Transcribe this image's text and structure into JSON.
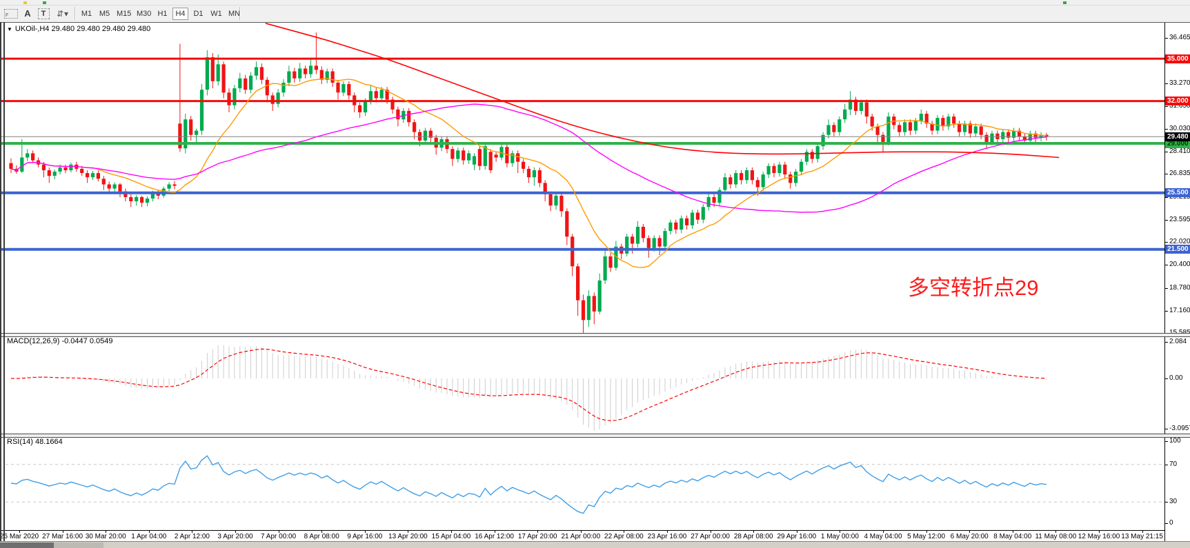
{
  "toolbar": {
    "icons": [
      {
        "name": "pointer-grid-icon",
        "glyph": "F"
      },
      {
        "name": "text-annotation-icon",
        "glyph": "A"
      },
      {
        "name": "text-label-icon",
        "glyph": "T"
      },
      {
        "name": "indicator-arrows-icon",
        "glyph": "⇵"
      },
      {
        "name": "dropdown-caret-icon",
        "glyph": "▾"
      }
    ],
    "timeframes": [
      {
        "label": "M1",
        "active": false
      },
      {
        "label": "M5",
        "active": false
      },
      {
        "label": "M15",
        "active": false
      },
      {
        "label": "M30",
        "active": false
      },
      {
        "label": "H1",
        "active": false
      },
      {
        "label": "H4",
        "active": true
      },
      {
        "label": "D1",
        "active": false
      },
      {
        "label": "W1",
        "active": false
      },
      {
        "label": "MN",
        "active": false
      }
    ]
  },
  "symbol_bar": {
    "caret": "▼",
    "text": "UKOil-,H4  29.480 29.480 29.480 29.480"
  },
  "annotation": {
    "text": "多空转折点29"
  },
  "panels": {
    "macd": {
      "label": "MACD(12,26,9) -0.0447 0.0549"
    },
    "rsi": {
      "label": "RSI(14) 48.1664"
    }
  },
  "colors": {
    "bull": "#00ab4e",
    "bear": "#f01414",
    "ma_fast": "#ff9a00",
    "ma_mid": "#ff00ff",
    "ma_slow": "#ff0000",
    "level_red": "#f40b0b",
    "level_green": "#2fb14c",
    "level_blue": "#3c63d2",
    "current_line": "#808080",
    "current_bg": "#000000",
    "current_text": "#ffffff",
    "hist": "#cdcdcd",
    "signal": "#ff0000",
    "rsi_line": "#3e9ee8",
    "rsi_dash": "#c8c8c8",
    "annotation": "#fb1d1d"
  },
  "chart_data": {
    "type": "candlestick",
    "symbol": "UKOil-",
    "timeframe": "H4",
    "price_range": {
      "max": 37.54,
      "min": 15.585
    },
    "price_axis_ticks": [
      "36.465",
      "34.845",
      "33.270",
      "31.650",
      "30.030",
      "28.410",
      "26.835",
      "25.215",
      "23.595",
      "22.020",
      "20.400",
      "18.780",
      "17.160",
      "15.585"
    ],
    "price_levels": [
      {
        "label": "35.000",
        "price": 35.0,
        "color": "level_red",
        "text": "#ffffff",
        "width": 3
      },
      {
        "label": "32.000",
        "price": 32.0,
        "color": "level_red",
        "text": "#ffffff",
        "width": 3
      },
      {
        "label": "29.000",
        "price": 29.0,
        "color": "level_green",
        "text": "#003300",
        "width": 4
      },
      {
        "label": "25.500",
        "price": 25.5,
        "color": "level_blue",
        "text": "#ffffff",
        "width": 4
      },
      {
        "label": "21.500",
        "price": 21.5,
        "color": "level_blue",
        "text": "#ffffff",
        "width": 4
      }
    ],
    "current_price": {
      "label": "29.480",
      "price": 29.48
    },
    "ohlc": [
      [
        27.6,
        27.95,
        26.9,
        27.2
      ],
      [
        27.2,
        27.45,
        26.85,
        27.0
      ],
      [
        27.0,
        29.3,
        26.9,
        28.0
      ],
      [
        28.0,
        28.6,
        27.75,
        28.3
      ],
      [
        28.3,
        28.5,
        27.6,
        27.8
      ],
      [
        27.8,
        28.0,
        27.3,
        27.5
      ],
      [
        27.5,
        27.7,
        26.6,
        27.1
      ],
      [
        27.1,
        27.3,
        26.2,
        26.7
      ],
      [
        26.7,
        27.15,
        26.45,
        27.0
      ],
      [
        27.0,
        27.5,
        26.8,
        27.3
      ],
      [
        27.3,
        27.5,
        26.9,
        27.1
      ],
      [
        27.1,
        27.65,
        26.95,
        27.5
      ],
      [
        27.5,
        27.7,
        27.0,
        27.2
      ],
      [
        27.2,
        27.4,
        26.7,
        26.9
      ],
      [
        26.9,
        27.1,
        26.2,
        26.6
      ],
      [
        26.6,
        27.05,
        26.4,
        26.9
      ],
      [
        26.9,
        27.1,
        26.3,
        26.5
      ],
      [
        26.5,
        26.7,
        25.7,
        26.1
      ],
      [
        26.1,
        26.3,
        25.55,
        25.8
      ],
      [
        25.8,
        26.25,
        25.6,
        26.1
      ],
      [
        26.1,
        26.2,
        25.2,
        25.6
      ],
      [
        25.6,
        25.8,
        24.9,
        25.2
      ],
      [
        25.2,
        25.4,
        24.5,
        24.9
      ],
      [
        24.9,
        25.35,
        24.6,
        25.2
      ],
      [
        25.2,
        25.3,
        24.5,
        24.8
      ],
      [
        24.8,
        25.25,
        24.55,
        25.1
      ],
      [
        25.1,
        25.65,
        24.9,
        25.5
      ],
      [
        25.5,
        25.7,
        25.05,
        25.3
      ],
      [
        25.3,
        25.95,
        25.15,
        25.8
      ],
      [
        25.8,
        26.25,
        25.6,
        26.1
      ],
      [
        26.1,
        26.35,
        25.75,
        26.0
      ],
      [
        30.4,
        36.05,
        28.4,
        28.65
      ],
      [
        28.65,
        31.1,
        28.3,
        30.7
      ],
      [
        30.7,
        30.95,
        29.2,
        29.6
      ],
      [
        29.6,
        30.05,
        28.9,
        29.9
      ],
      [
        29.9,
        33.2,
        29.6,
        32.8
      ],
      [
        32.8,
        35.6,
        32.4,
        35.1
      ],
      [
        35.1,
        35.4,
        32.9,
        33.4
      ],
      [
        33.4,
        35.3,
        33.1,
        34.6
      ],
      [
        34.6,
        34.8,
        32.2,
        32.6
      ],
      [
        32.6,
        32.9,
        31.2,
        31.7
      ],
      [
        31.7,
        33.15,
        31.4,
        32.9
      ],
      [
        32.9,
        34.0,
        32.6,
        33.6
      ],
      [
        33.6,
        33.85,
        32.5,
        32.8
      ],
      [
        32.8,
        34.05,
        32.55,
        33.8
      ],
      [
        33.8,
        34.8,
        33.5,
        34.4
      ],
      [
        34.4,
        34.65,
        33.2,
        33.5
      ],
      [
        33.5,
        33.7,
        31.9,
        32.4
      ],
      [
        32.4,
        32.6,
        31.3,
        31.8
      ],
      [
        31.8,
        32.85,
        31.55,
        32.6
      ],
      [
        32.6,
        33.55,
        32.3,
        33.3
      ],
      [
        33.3,
        34.5,
        33.05,
        34.1
      ],
      [
        34.1,
        34.35,
        33.3,
        33.6
      ],
      [
        33.6,
        34.7,
        33.35,
        34.3
      ],
      [
        34.3,
        34.5,
        33.6,
        33.9
      ],
      [
        33.9,
        35.0,
        33.65,
        34.5
      ],
      [
        34.5,
        36.85,
        33.9,
        34.2
      ],
      [
        34.2,
        34.45,
        33.2,
        33.5
      ],
      [
        33.5,
        34.3,
        33.25,
        34.1
      ],
      [
        34.1,
        34.3,
        33.0,
        33.3
      ],
      [
        33.3,
        33.5,
        32.1,
        32.6
      ],
      [
        32.6,
        33.4,
        32.35,
        33.2
      ],
      [
        33.2,
        33.4,
        32.1,
        32.4
      ],
      [
        32.4,
        32.6,
        31.2,
        31.7
      ],
      [
        31.7,
        31.9,
        30.8,
        31.2
      ],
      [
        31.2,
        32.2,
        30.95,
        32.0
      ],
      [
        32.0,
        33.1,
        31.75,
        32.7
      ],
      [
        32.7,
        32.95,
        31.9,
        32.2
      ],
      [
        32.2,
        33.0,
        31.95,
        32.8
      ],
      [
        32.8,
        33.0,
        31.8,
        32.1
      ],
      [
        32.1,
        32.3,
        31.1,
        31.4
      ],
      [
        31.4,
        31.6,
        30.2,
        30.7
      ],
      [
        30.7,
        31.5,
        30.45,
        31.3
      ],
      [
        31.3,
        31.5,
        30.2,
        30.5
      ],
      [
        30.5,
        30.7,
        29.3,
        29.8
      ],
      [
        29.8,
        30.0,
        28.8,
        29.2
      ],
      [
        29.2,
        30.1,
        28.95,
        29.9
      ],
      [
        29.9,
        30.1,
        29.1,
        29.4
      ],
      [
        29.4,
        29.6,
        28.2,
        28.7
      ],
      [
        28.7,
        29.5,
        28.45,
        29.3
      ],
      [
        29.3,
        29.5,
        28.3,
        28.6
      ],
      [
        28.6,
        28.8,
        27.4,
        27.9
      ],
      [
        27.9,
        28.7,
        27.65,
        28.5
      ],
      [
        28.5,
        28.7,
        27.5,
        27.8
      ],
      [
        27.8,
        28.5,
        27.55,
        28.3
      ],
      [
        27.5,
        28.3,
        27.1,
        28.1
      ],
      [
        28.6,
        28.8,
        27.1,
        27.4
      ],
      [
        27.4,
        28.95,
        27.15,
        28.8
      ],
      [
        28.4,
        28.6,
        26.9,
        27.1
      ],
      [
        28.2,
        28.4,
        27.7,
        28.0
      ],
      [
        28.0,
        28.95,
        27.8,
        28.75
      ],
      [
        28.75,
        28.95,
        27.3,
        27.6
      ],
      [
        27.6,
        28.5,
        27.35,
        28.3
      ],
      [
        28.3,
        28.5,
        26.9,
        27.7
      ],
      [
        27.7,
        27.9,
        26.9,
        27.2
      ],
      [
        27.2,
        27.4,
        26.2,
        26.6
      ],
      [
        26.6,
        27.3,
        26.0,
        27.1
      ],
      [
        27.1,
        27.3,
        25.9,
        26.2
      ],
      [
        26.2,
        26.4,
        24.9,
        25.4
      ],
      [
        25.4,
        25.6,
        24.2,
        24.6
      ],
      [
        24.6,
        25.5,
        24.3,
        25.3
      ],
      [
        25.3,
        25.45,
        23.8,
        24.2
      ],
      [
        24.2,
        24.4,
        21.8,
        22.4
      ],
      [
        22.4,
        22.6,
        19.6,
        20.3
      ],
      [
        20.3,
        20.5,
        16.8,
        17.9
      ],
      [
        17.9,
        18.3,
        15.59,
        16.5
      ],
      [
        16.5,
        18.6,
        16.0,
        18.2
      ],
      [
        18.2,
        18.45,
        16.2,
        17.1
      ],
      [
        17.1,
        19.8,
        16.9,
        19.3
      ],
      [
        19.3,
        21.6,
        19.05,
        21.0
      ],
      [
        21.0,
        21.25,
        19.9,
        20.2
      ],
      [
        20.2,
        22.1,
        20.0,
        21.7
      ],
      [
        21.7,
        21.9,
        20.8,
        21.2
      ],
      [
        21.2,
        22.6,
        21.0,
        22.4
      ],
      [
        22.4,
        22.6,
        21.2,
        21.9
      ],
      [
        21.9,
        23.5,
        21.65,
        23.1
      ],
      [
        23.1,
        23.3,
        22.0,
        22.3
      ],
      [
        22.3,
        22.5,
        20.9,
        21.6
      ],
      [
        21.6,
        22.5,
        21.35,
        22.3
      ],
      [
        22.3,
        22.5,
        21.1,
        21.7
      ],
      [
        21.7,
        23.0,
        21.45,
        22.8
      ],
      [
        22.8,
        23.6,
        22.55,
        23.4
      ],
      [
        23.4,
        23.6,
        22.6,
        22.9
      ],
      [
        22.9,
        23.9,
        22.65,
        23.7
      ],
      [
        23.7,
        23.9,
        22.9,
        23.2
      ],
      [
        23.2,
        24.3,
        22.95,
        24.1
      ],
      [
        24.1,
        24.3,
        23.3,
        23.6
      ],
      [
        23.6,
        24.7,
        23.35,
        24.5
      ],
      [
        24.5,
        25.4,
        24.25,
        25.2
      ],
      [
        25.2,
        25.4,
        24.5,
        24.8
      ],
      [
        24.8,
        25.9,
        24.55,
        25.7
      ],
      [
        25.7,
        26.9,
        25.45,
        26.6
      ],
      [
        26.6,
        26.8,
        25.8,
        26.1
      ],
      [
        26.1,
        27.1,
        25.85,
        26.9
      ],
      [
        26.9,
        27.1,
        26.1,
        26.4
      ],
      [
        26.4,
        27.3,
        26.15,
        27.1
      ],
      [
        27.1,
        27.3,
        26.1,
        26.4
      ],
      [
        26.4,
        26.6,
        25.3,
        25.9
      ],
      [
        25.9,
        27.0,
        25.65,
        26.8
      ],
      [
        26.8,
        27.6,
        26.55,
        27.4
      ],
      [
        27.4,
        27.6,
        26.6,
        26.9
      ],
      [
        26.9,
        27.7,
        26.65,
        27.5
      ],
      [
        27.5,
        27.7,
        26.5,
        26.8
      ],
      [
        26.8,
        27.0,
        25.8,
        26.2
      ],
      [
        26.2,
        27.2,
        25.95,
        27.0
      ],
      [
        27.0,
        27.9,
        26.75,
        27.7
      ],
      [
        27.7,
        28.6,
        27.45,
        28.4
      ],
      [
        28.4,
        28.6,
        27.6,
        27.9
      ],
      [
        27.9,
        29.0,
        27.65,
        28.8
      ],
      [
        28.8,
        29.8,
        28.55,
        29.6
      ],
      [
        29.6,
        30.7,
        29.35,
        30.3
      ],
      [
        30.3,
        30.5,
        29.5,
        29.8
      ],
      [
        29.8,
        30.9,
        29.55,
        30.7
      ],
      [
        30.7,
        31.8,
        30.45,
        31.4
      ],
      [
        31.4,
        32.7,
        31.0,
        32.1
      ],
      [
        32.1,
        32.3,
        31.0,
        31.3
      ],
      [
        31.3,
        32.1,
        31.05,
        31.9
      ],
      [
        31.9,
        32.1,
        30.4,
        30.9
      ],
      [
        30.9,
        31.1,
        29.9,
        30.2
      ],
      [
        30.2,
        30.4,
        28.9,
        29.6
      ],
      [
        29.6,
        29.8,
        28.4,
        29.1
      ],
      [
        29.1,
        31.2,
        28.85,
        30.9
      ],
      [
        30.9,
        31.1,
        30.0,
        30.3
      ],
      [
        30.3,
        30.5,
        29.5,
        29.8
      ],
      [
        29.8,
        30.7,
        29.55,
        30.5
      ],
      [
        30.5,
        30.7,
        29.6,
        29.9
      ],
      [
        29.9,
        30.8,
        29.65,
        30.6
      ],
      [
        30.6,
        31.4,
        30.35,
        31.1
      ],
      [
        31.1,
        31.3,
        30.1,
        30.4
      ],
      [
        30.4,
        30.6,
        29.6,
        29.9
      ],
      [
        29.9,
        31.0,
        29.65,
        30.8
      ],
      [
        30.8,
        31.0,
        29.9,
        30.2
      ],
      [
        30.2,
        31.1,
        29.95,
        30.9
      ],
      [
        30.9,
        31.1,
        30.1,
        30.4
      ],
      [
        30.4,
        30.6,
        29.5,
        29.8
      ],
      [
        29.8,
        30.6,
        29.55,
        30.4
      ],
      [
        30.4,
        30.6,
        29.4,
        29.7
      ],
      [
        29.7,
        30.4,
        29.45,
        30.2
      ],
      [
        30.2,
        30.4,
        29.3,
        29.6
      ],
      [
        29.6,
        29.8,
        28.6,
        29.1
      ],
      [
        29.1,
        29.9,
        28.85,
        29.7
      ],
      [
        29.7,
        29.9,
        29.0,
        29.3
      ],
      [
        29.3,
        30.0,
        29.05,
        29.8
      ],
      [
        29.8,
        30.0,
        29.1,
        29.4
      ],
      [
        29.4,
        30.1,
        29.15,
        29.9
      ],
      [
        29.9,
        30.1,
        29.2,
        29.5
      ],
      [
        29.5,
        29.7,
        28.9,
        29.2
      ],
      [
        29.2,
        29.9,
        28.95,
        29.7
      ],
      [
        29.7,
        29.9,
        29.1,
        29.4
      ],
      [
        29.4,
        29.8,
        29.15,
        29.6
      ],
      [
        29.6,
        29.75,
        29.2,
        29.48
      ]
    ],
    "overlays": {
      "sma_fast_period": 14,
      "sma_mid_period": 55,
      "slow_ma_points": [
        [
          46.7,
          37.5
        ],
        [
          52.4,
          36.9
        ],
        [
          58.1,
          36.3
        ],
        [
          63.8,
          35.6
        ],
        [
          69.5,
          34.9
        ],
        [
          75.2,
          34.1
        ],
        [
          80.9,
          33.3
        ],
        [
          86.6,
          32.5
        ],
        [
          92.3,
          31.7
        ],
        [
          98.0,
          30.9
        ],
        [
          103.7,
          30.2
        ],
        [
          109.4,
          29.6
        ],
        [
          115.1,
          29.1
        ],
        [
          120.8,
          28.7
        ],
        [
          126.5,
          28.45
        ],
        [
          132.2,
          28.3
        ],
        [
          137.8,
          28.25
        ],
        [
          143.5,
          28.25
        ],
        [
          149.2,
          28.3
        ],
        [
          154.9,
          28.35
        ],
        [
          160.6,
          28.4
        ],
        [
          166.3,
          28.4
        ],
        [
          172.0,
          28.4
        ],
        [
          177.7,
          28.35
        ],
        [
          183.4,
          28.25
        ],
        [
          189.1,
          28.1
        ],
        [
          192.3,
          28.0
        ]
      ]
    },
    "indicators": {
      "macd": {
        "fast": 12,
        "slow": 26,
        "signal": 9,
        "range": {
          "max": 2.44,
          "min": -3.15
        },
        "axis_labels": [
          "2.084",
          "0.00",
          "-3.0957"
        ],
        "current": {
          "macd": -0.0447,
          "signal": 0.0549
        }
      },
      "rsi": {
        "period": 14,
        "range": {
          "max": 100,
          "min": 0
        },
        "levels": [
          70,
          30
        ],
        "axis_labels": [
          "100",
          "70",
          "30",
          "0"
        ],
        "current": 48.1664
      }
    },
    "time_labels": [
      "26 Mar 2020",
      "27 Mar 16:00",
      "30 Mar 20:00",
      "1 Apr 04:00",
      "2 Apr 12:00",
      "3 Apr 20:00",
      "7 Apr 00:00",
      "8 Apr 08:00",
      "9 Apr 16:00",
      "13 Apr 20:00",
      "15 Apr 04:00",
      "16 Apr 12:00",
      "17 Apr 20:00",
      "21 Apr 00:00",
      "22 Apr 08:00",
      "23 Apr 16:00",
      "27 Apr 00:00",
      "28 Apr 08:00",
      "29 Apr 16:00",
      "1 May 00:00",
      "4 May 04:00",
      "5 May 12:00",
      "6 May 20:00",
      "8 May 04:00",
      "11 May 08:00",
      "12 May 16:00",
      "13 May 21:15"
    ]
  }
}
